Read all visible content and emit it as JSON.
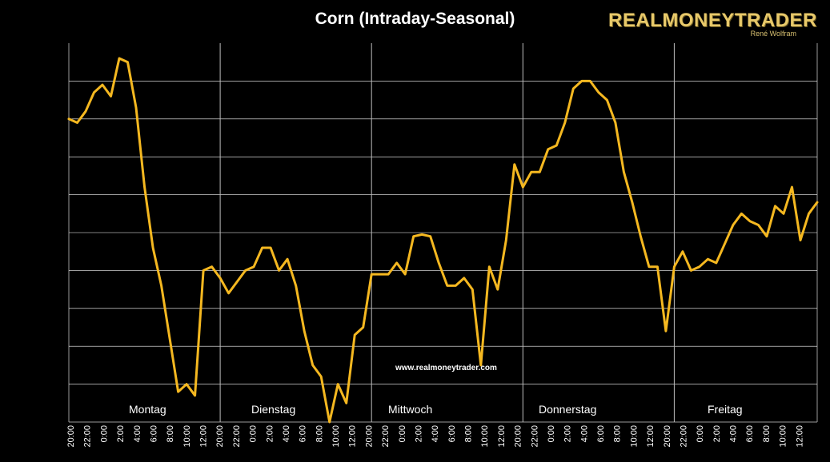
{
  "chart_data": {
    "type": "line",
    "title": "Corn (Intraday-Seasonal)",
    "brand": {
      "name": "REALMONEYTRADER",
      "author": "René Wolfram"
    },
    "website": "www.realmoneytrader.com",
    "line_color": "#f5b820",
    "grid_color": "#ffffff",
    "background": "#000000",
    "ylim": [
      0,
      10
    ],
    "grid_lines": 9,
    "days": [
      "Montag",
      "Dienstag",
      "Mittwoch",
      "Donnerstag",
      "Freitag"
    ],
    "x_ticks": [
      "20:00",
      "22:00",
      "0:00",
      "2:00",
      "4:00",
      "6:00",
      "8:00",
      "10:00",
      "12:00",
      "20:00",
      "22:00",
      "0:00",
      "2:00",
      "4:00",
      "6:00",
      "8:00",
      "10:00",
      "12:00",
      "20:00",
      "22:00",
      "0:00",
      "2:00",
      "4:00",
      "6:00",
      "8:00",
      "10:00",
      "12:00",
      "20:00",
      "22:00",
      "0:00",
      "2:00",
      "4:00",
      "6:00",
      "8:00",
      "10:00",
      "12:00",
      "20:00",
      "22:00",
      "0:00",
      "2:00",
      "4:00",
      "6:00",
      "8:00",
      "10:00",
      "12:00"
    ],
    "day_bounds": [
      0,
      18,
      36,
      54,
      72,
      89
    ],
    "series": [
      {
        "name": "Corn",
        "values": [
          8.0,
          7.9,
          8.2,
          8.7,
          8.9,
          8.6,
          9.6,
          9.5,
          8.3,
          6.2,
          4.6,
          3.6,
          2.2,
          0.8,
          1.0,
          0.7,
          4.0,
          4.1,
          3.8,
          3.4,
          3.7,
          4.0,
          4.1,
          4.6,
          4.6,
          4.0,
          4.3,
          3.6,
          2.4,
          1.5,
          1.2,
          0.0,
          1.0,
          0.5,
          2.3,
          2.5,
          3.9,
          3.9,
          3.9,
          4.2,
          3.9,
          4.9,
          4.95,
          4.9,
          4.2,
          3.6,
          3.6,
          3.8,
          3.5,
          1.5,
          4.1,
          3.5,
          4.8,
          6.8,
          6.2,
          6.6,
          6.6,
          7.2,
          7.3,
          7.9,
          8.8,
          9.0,
          9.0,
          8.7,
          8.5,
          7.9,
          6.6,
          5.8,
          4.9,
          4.1,
          4.1,
          2.4,
          4.1,
          4.5,
          4.0,
          4.1,
          4.3,
          4.2,
          4.7,
          5.2,
          5.5,
          5.3,
          5.2,
          4.9,
          5.7,
          5.5,
          6.2,
          4.8,
          5.5,
          5.8
        ]
      }
    ]
  }
}
